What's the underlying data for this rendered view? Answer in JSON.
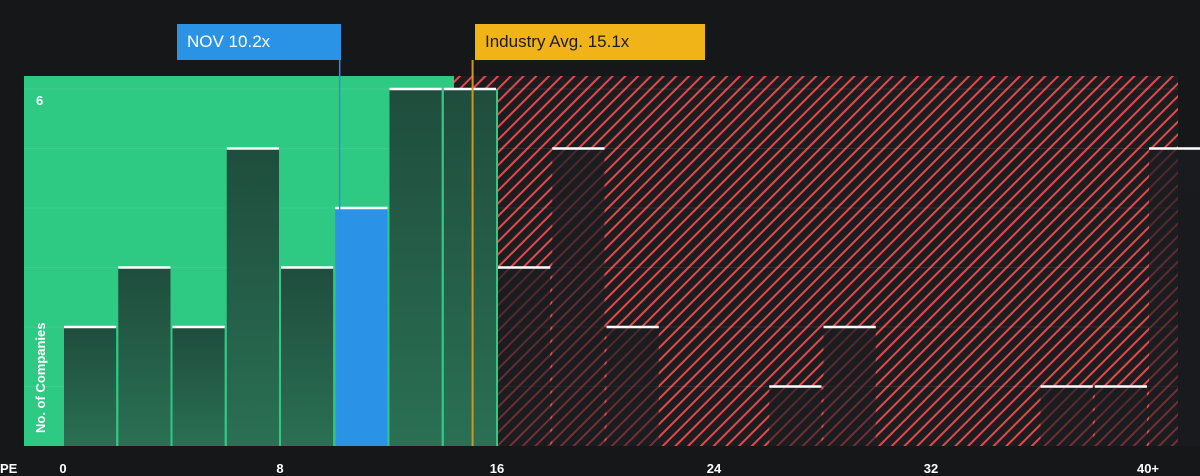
{
  "chart_data": {
    "type": "bar",
    "x_axis_label": "PE",
    "ylabel": "No. of Companies",
    "x_ticks": [
      "0",
      "8",
      "16",
      "24",
      "32",
      "40+"
    ],
    "y_ticks": [
      "6"
    ],
    "xlim": [
      0,
      41
    ],
    "ylim": [
      0,
      6.25
    ],
    "bin_width": 2,
    "bins": [
      {
        "x0": 0,
        "value": 2
      },
      {
        "x0": 2,
        "value": 3
      },
      {
        "x0": 4,
        "value": 2
      },
      {
        "x0": 6,
        "value": 5
      },
      {
        "x0": 8,
        "value": 3
      },
      {
        "x0": 10,
        "value": 4
      },
      {
        "x0": 12,
        "value": 6
      },
      {
        "x0": 14,
        "value": 6
      },
      {
        "x0": 16,
        "value": 3
      },
      {
        "x0": 18,
        "value": 5
      },
      {
        "x0": 20,
        "value": 2
      },
      {
        "x0": 22,
        "value": 0
      },
      {
        "x0": 24,
        "value": 0
      },
      {
        "x0": 26,
        "value": 1
      },
      {
        "x0": 28,
        "value": 2
      },
      {
        "x0": 30,
        "value": 0
      },
      {
        "x0": 32,
        "value": 0
      },
      {
        "x0": 34,
        "value": 0
      },
      {
        "x0": 36,
        "value": 1
      },
      {
        "x0": 38,
        "value": 1
      },
      {
        "x0": 40,
        "value": 5
      }
    ],
    "company": {
      "label": "NOV 10.2x",
      "pe": 10.2
    },
    "industry_avg": {
      "label": "Industry Avg. 15.1x",
      "pe": 15.1
    },
    "fair_range_upper_pe": 14.6,
    "colors": {
      "fair_region": "#2ec983",
      "expensive_hatch": "#e64848",
      "bar": "#1f4d3d",
      "company_bar": "#2a93e6",
      "industry_line": "#c9972a",
      "company_line": "#2a93e6",
      "background": "#151719"
    }
  }
}
